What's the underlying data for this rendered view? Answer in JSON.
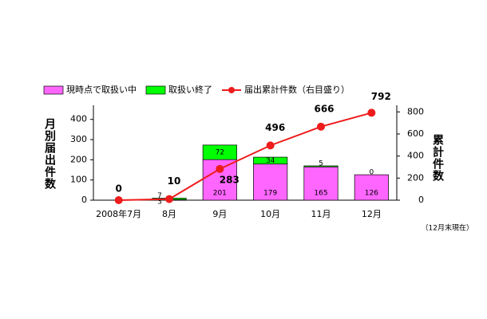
{
  "chart_data": {
    "type": "bar",
    "categories": [
      "2008年7月",
      "8月",
      "9月",
      "10月",
      "11月",
      "12月"
    ],
    "series": [
      {
        "name": "現時点で取扱い中",
        "color": "#ff66ff",
        "values": [
          null,
          3,
          201,
          179,
          165,
          126
        ]
      },
      {
        "name": "取扱い終了",
        "color": "#00ff00",
        "values": [
          null,
          7,
          72,
          34,
          5,
          0
        ]
      },
      {
        "name": "届出累計件数（右目盛り）",
        "color": "#ee1c1c",
        "type": "line",
        "axis": "y2",
        "values": [
          0,
          10,
          283,
          496,
          666,
          792
        ]
      }
    ],
    "ylabel": "月別届出件数",
    "y2label": "累計件数",
    "ylim": [
      0,
      470
    ],
    "yticks": [
      0,
      100,
      200,
      300,
      400
    ],
    "y2lim": [
      0,
      860
    ],
    "y2ticks": [
      0,
      200,
      400,
      600,
      800
    ],
    "note": "（12月末現在）",
    "legend": "top"
  }
}
